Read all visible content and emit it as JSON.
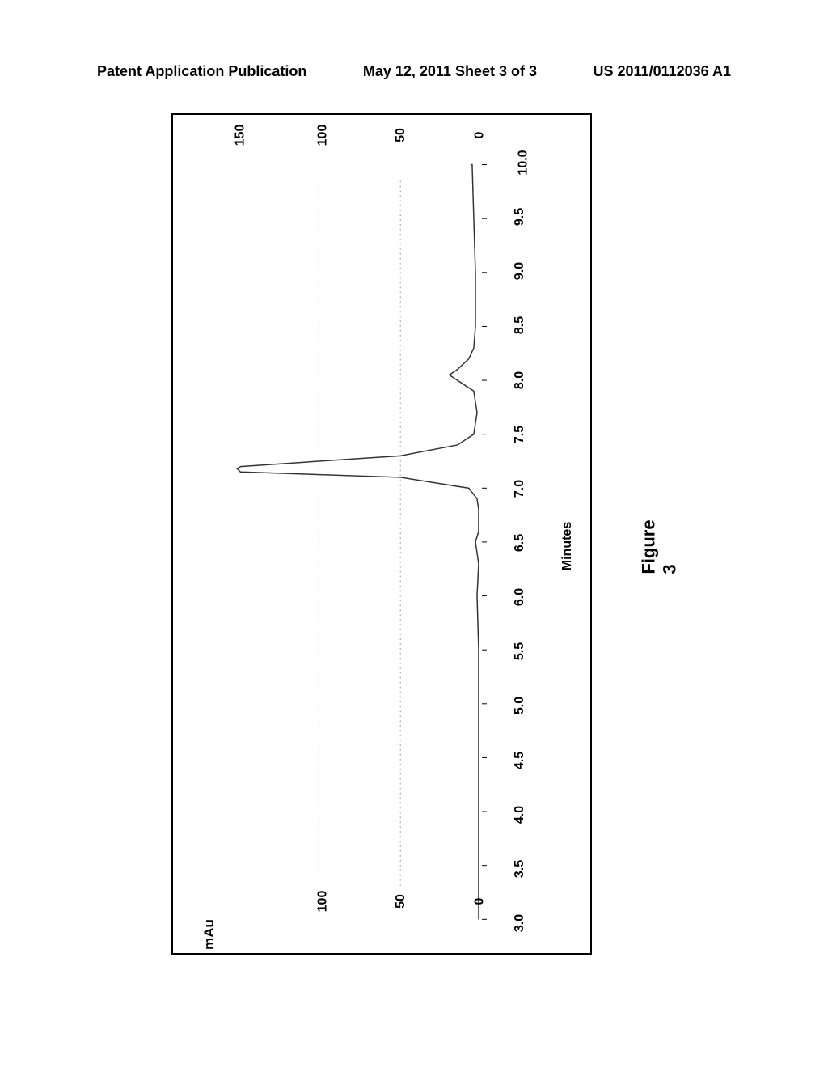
{
  "header": {
    "left": "Patent Application Publication",
    "center": "May 12, 2011  Sheet 3 of 3",
    "right": "US 2011/0112036 A1"
  },
  "caption": "Figure 3",
  "chart": {
    "type": "line",
    "y_label": "mAu",
    "x_label": "Minutes",
    "x_ticks": [
      "3.0",
      "3.5",
      "4.0",
      "4.5",
      "5.0",
      "5.5",
      "6.0",
      "6.5",
      "7.0",
      "7.5",
      "8.0",
      "8.5",
      "9.0",
      "9.5",
      "10.0"
    ],
    "y_ticks_left": [
      "0",
      "50",
      "100"
    ],
    "y_ticks_right": [
      "0",
      "50",
      "100",
      "150"
    ],
    "y_min": 0,
    "y_max": 150,
    "x_min": 3.0,
    "x_max": 10.0,
    "line_color": "#333333",
    "line_width": 1.5,
    "border_color": "#000000",
    "background_color": "#ffffff",
    "grid_color": "#888888",
    "tick_fontsize": 16,
    "label_fontsize": 16,
    "caption_fontsize": 22,
    "data_points": [
      {
        "x": 3.0,
        "y": 2
      },
      {
        "x": 3.3,
        "y": 2
      },
      {
        "x": 3.5,
        "y": 2
      },
      {
        "x": 4.0,
        "y": 2
      },
      {
        "x": 4.5,
        "y": 2
      },
      {
        "x": 5.0,
        "y": 2
      },
      {
        "x": 5.5,
        "y": 2
      },
      {
        "x": 6.0,
        "y": 3
      },
      {
        "x": 6.3,
        "y": 2
      },
      {
        "x": 6.5,
        "y": 4
      },
      {
        "x": 6.6,
        "y": 2
      },
      {
        "x": 6.8,
        "y": 2
      },
      {
        "x": 6.9,
        "y": 3
      },
      {
        "x": 7.0,
        "y": 8
      },
      {
        "x": 7.1,
        "y": 50
      },
      {
        "x": 7.15,
        "y": 148
      },
      {
        "x": 7.18,
        "y": 150
      },
      {
        "x": 7.2,
        "y": 148
      },
      {
        "x": 7.25,
        "y": 100
      },
      {
        "x": 7.3,
        "y": 50
      },
      {
        "x": 7.4,
        "y": 15
      },
      {
        "x": 7.5,
        "y": 5
      },
      {
        "x": 7.7,
        "y": 3
      },
      {
        "x": 7.9,
        "y": 5
      },
      {
        "x": 8.0,
        "y": 15
      },
      {
        "x": 8.05,
        "y": 20
      },
      {
        "x": 8.1,
        "y": 15
      },
      {
        "x": 8.2,
        "y": 8
      },
      {
        "x": 8.3,
        "y": 5
      },
      {
        "x": 8.5,
        "y": 4
      },
      {
        "x": 9.0,
        "y": 4
      },
      {
        "x": 9.5,
        "y": 5
      },
      {
        "x": 10.0,
        "y": 6
      },
      {
        "x": 10.0,
        "y": 7
      }
    ]
  }
}
